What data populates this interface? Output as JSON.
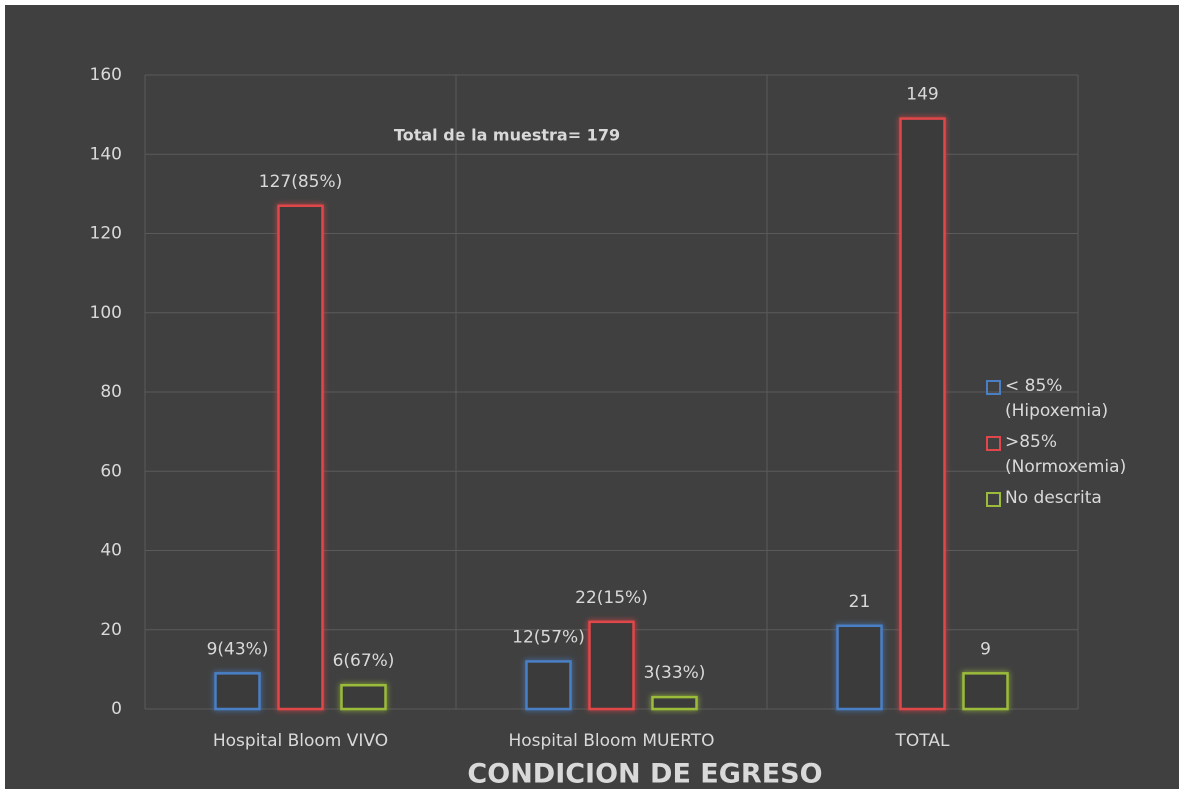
{
  "chart_data": {
    "type": "bar",
    "annotation": "Total de la muestra= 179",
    "x_label": "CONDICION DE  EGRESO",
    "categories": [
      "Hospital Bloom VIVO",
      "Hospital Bloom MUERTO",
      "TOTAL"
    ],
    "series": [
      {
        "name": "< 85% (Hipoxemia)",
        "color": "#4a7fc4",
        "values": [
          9,
          12,
          21
        ],
        "value_labels": [
          "9(43%)",
          "12(57%)",
          "21"
        ]
      },
      {
        "name": ">85% (Normoxemia)",
        "color": "#e0464a",
        "values": [
          127,
          22,
          149
        ],
        "value_labels": [
          "127(85%)",
          "22(15%)",
          "149"
        ]
      },
      {
        "name": "No descrita",
        "color": "#9bbb3b",
        "values": [
          6,
          3,
          9
        ],
        "value_labels": [
          "6(67%)",
          "3(33%)",
          "9"
        ]
      }
    ],
    "ylim": [
      0,
      160
    ],
    "yticks": [
      0,
      20,
      40,
      60,
      80,
      100,
      120,
      140,
      160
    ],
    "grid": true,
    "legend": "right"
  }
}
